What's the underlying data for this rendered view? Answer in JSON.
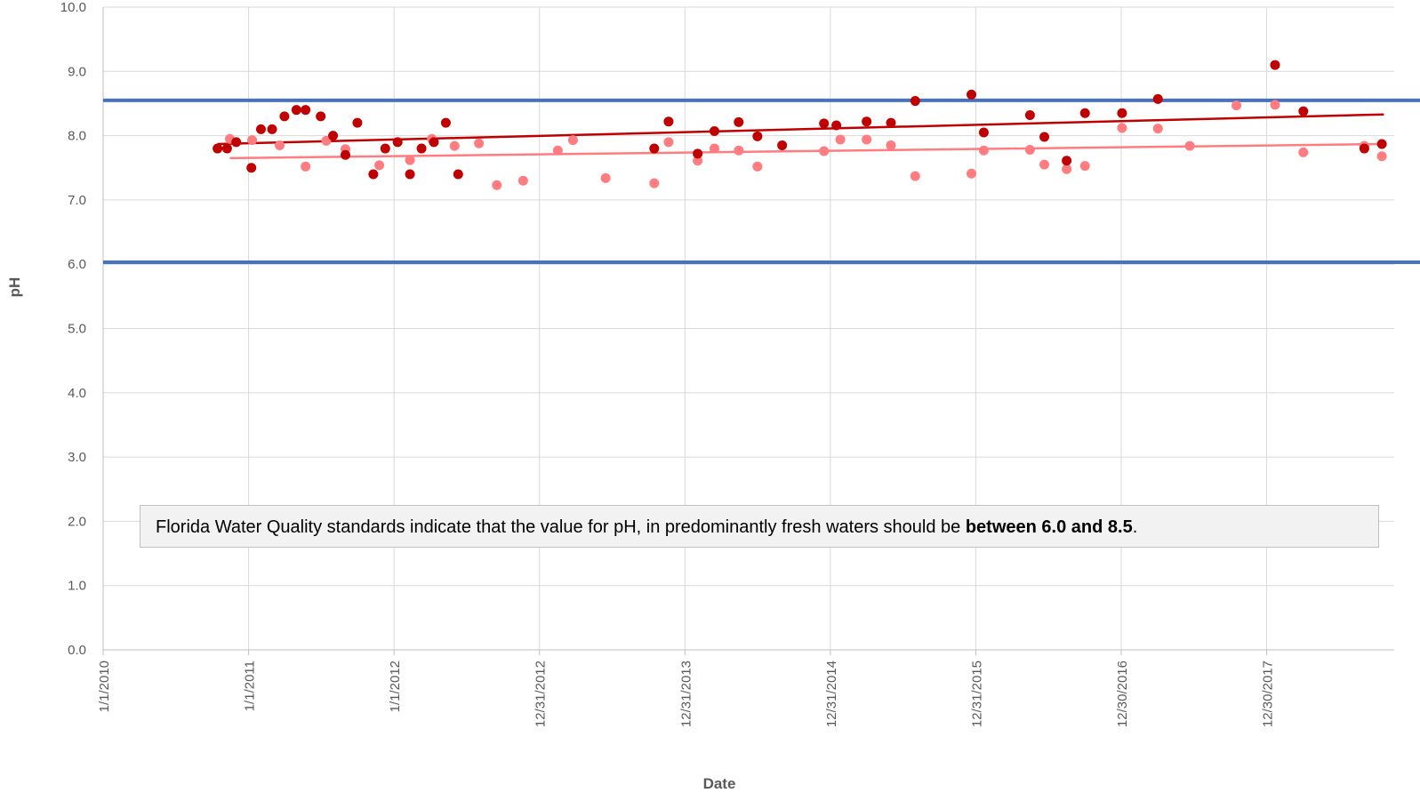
{
  "chart_data": {
    "type": "scatter",
    "xlabel": "Date",
    "ylabel": "pH",
    "ylim": [
      0,
      10
    ],
    "xlim": [
      "2010-01-01",
      "2018-11-15"
    ],
    "y_ticks": [
      "0.0",
      "1.0",
      "2.0",
      "3.0",
      "4.0",
      "5.0",
      "6.0",
      "7.0",
      "8.0",
      "9.0",
      "10.0"
    ],
    "x_ticks": [
      {
        "date": "2010-01-01",
        "label": "1/1/2010"
      },
      {
        "date": "2011-01-01",
        "label": "1/1/2011"
      },
      {
        "date": "2012-01-01",
        "label": "1/1/2012"
      },
      {
        "date": "2012-12-31",
        "label": "12/31/2012"
      },
      {
        "date": "2013-12-31",
        "label": "12/31/2013"
      },
      {
        "date": "2014-12-31",
        "label": "12/31/2014"
      },
      {
        "date": "2015-12-31",
        "label": "12/31/2015"
      },
      {
        "date": "2016-12-30",
        "label": "12/30/2016"
      },
      {
        "date": "2017-12-30",
        "label": "12/30/2017"
      }
    ],
    "grid": true,
    "colors": {
      "series_dark": "#c00000",
      "series_light": "#ff7c80",
      "limit_lines": "#4472c4",
      "grid": "#d9d9d9",
      "axis": "#bfbfbf"
    },
    "reference_lines": [
      {
        "y": 8.55,
        "color": "#4472c4"
      },
      {
        "y": 6.03,
        "color": "#4472c4"
      }
    ],
    "series": [
      {
        "color": "#c00000",
        "trendline": {
          "x": [
            "2010-10-15",
            "2018-10-20"
          ],
          "y": [
            7.87,
            8.33
          ]
        },
        "points": [
          {
            "x": "2010-10-15",
            "y": 7.8
          },
          {
            "x": "2010-11-08",
            "y": 7.8
          },
          {
            "x": "2010-12-01",
            "y": 7.9
          },
          {
            "x": "2011-01-08",
            "y": 7.5
          },
          {
            "x": "2011-02-01",
            "y": 8.1
          },
          {
            "x": "2011-03-01",
            "y": 8.1
          },
          {
            "x": "2011-04-01",
            "y": 8.3
          },
          {
            "x": "2011-05-01",
            "y": 8.4
          },
          {
            "x": "2011-05-24",
            "y": 8.4
          },
          {
            "x": "2011-07-01",
            "y": 8.3
          },
          {
            "x": "2011-08-01",
            "y": 8.0
          },
          {
            "x": "2011-09-01",
            "y": 7.7
          },
          {
            "x": "2011-10-01",
            "y": 8.2
          },
          {
            "x": "2011-11-10",
            "y": 7.4
          },
          {
            "x": "2011-12-10",
            "y": 7.8
          },
          {
            "x": "2012-01-10",
            "y": 7.9
          },
          {
            "x": "2012-02-10",
            "y": 7.4
          },
          {
            "x": "2012-03-10",
            "y": 7.8
          },
          {
            "x": "2012-04-10",
            "y": 7.9
          },
          {
            "x": "2012-05-10",
            "y": 8.2
          },
          {
            "x": "2012-06-10",
            "y": 7.4
          },
          {
            "x": "2013-10-15",
            "y": 7.8
          },
          {
            "x": "2013-11-20",
            "y": 8.22
          },
          {
            "x": "2014-02-01",
            "y": 7.72
          },
          {
            "x": "2014-03-15",
            "y": 8.07
          },
          {
            "x": "2014-05-15",
            "y": 8.21
          },
          {
            "x": "2014-07-01",
            "y": 7.99
          },
          {
            "x": "2014-09-01",
            "y": 7.85
          },
          {
            "x": "2014-12-15",
            "y": 8.19
          },
          {
            "x": "2015-01-15",
            "y": 8.16
          },
          {
            "x": "2015-04-01",
            "y": 8.22
          },
          {
            "x": "2015-06-01",
            "y": 8.2
          },
          {
            "x": "2015-08-01",
            "y": 8.54
          },
          {
            "x": "2015-12-20",
            "y": 8.64
          },
          {
            "x": "2016-01-20",
            "y": 8.05
          },
          {
            "x": "2016-05-15",
            "y": 8.32
          },
          {
            "x": "2016-06-20",
            "y": 7.98
          },
          {
            "x": "2016-08-15",
            "y": 7.61
          },
          {
            "x": "2016-09-30",
            "y": 8.35
          },
          {
            "x": "2017-01-01",
            "y": 8.35
          },
          {
            "x": "2017-04-01",
            "y": 8.57
          },
          {
            "x": "2018-01-20",
            "y": 9.1
          },
          {
            "x": "2018-04-01",
            "y": 8.38
          },
          {
            "x": "2018-09-01",
            "y": 7.8
          },
          {
            "x": "2018-10-15",
            "y": 7.87
          }
        ]
      },
      {
        "color": "#ff7c80",
        "trendline": {
          "x": [
            "2010-11-15",
            "2018-10-20"
          ],
          "y": [
            7.65,
            7.87
          ]
        },
        "points": [
          {
            "x": "2010-11-15",
            "y": 7.95
          },
          {
            "x": "2011-01-10",
            "y": 7.93
          },
          {
            "x": "2011-03-20",
            "y": 7.85
          },
          {
            "x": "2011-05-24",
            "y": 7.52
          },
          {
            "x": "2011-07-15",
            "y": 7.92
          },
          {
            "x": "2011-09-01",
            "y": 7.79
          },
          {
            "x": "2011-11-25",
            "y": 7.54
          },
          {
            "x": "2012-02-10",
            "y": 7.62
          },
          {
            "x": "2012-04-05",
            "y": 7.95
          },
          {
            "x": "2012-06-01",
            "y": 7.84
          },
          {
            "x": "2012-08-01",
            "y": 7.88
          },
          {
            "x": "2012-09-15",
            "y": 7.23
          },
          {
            "x": "2012-11-20",
            "y": 7.3
          },
          {
            "x": "2013-02-15",
            "y": 7.77
          },
          {
            "x": "2013-03-25",
            "y": 7.93
          },
          {
            "x": "2013-06-15",
            "y": 7.34
          },
          {
            "x": "2013-10-15",
            "y": 7.26
          },
          {
            "x": "2013-11-20",
            "y": 7.9
          },
          {
            "x": "2014-02-01",
            "y": 7.61
          },
          {
            "x": "2014-03-15",
            "y": 7.8
          },
          {
            "x": "2014-05-15",
            "y": 7.77
          },
          {
            "x": "2014-07-01",
            "y": 7.52
          },
          {
            "x": "2014-12-15",
            "y": 7.76
          },
          {
            "x": "2015-01-25",
            "y": 7.94
          },
          {
            "x": "2015-04-01",
            "y": 7.94
          },
          {
            "x": "2015-06-01",
            "y": 7.85
          },
          {
            "x": "2015-08-01",
            "y": 7.37
          },
          {
            "x": "2015-12-20",
            "y": 7.41
          },
          {
            "x": "2016-01-20",
            "y": 7.77
          },
          {
            "x": "2016-05-15",
            "y": 7.78
          },
          {
            "x": "2016-06-20",
            "y": 7.55
          },
          {
            "x": "2016-08-15",
            "y": 7.48
          },
          {
            "x": "2016-09-30",
            "y": 7.53
          },
          {
            "x": "2017-01-01",
            "y": 8.12
          },
          {
            "x": "2017-04-01",
            "y": 8.11
          },
          {
            "x": "2017-06-20",
            "y": 7.84
          },
          {
            "x": "2017-10-15",
            "y": 8.47
          },
          {
            "x": "2018-01-20",
            "y": 8.48
          },
          {
            "x": "2018-04-01",
            "y": 7.74
          },
          {
            "x": "2018-09-01",
            "y": 7.84
          },
          {
            "x": "2018-10-15",
            "y": 7.68
          }
        ]
      }
    ]
  },
  "annotation": {
    "text_before": "Florida Water Quality standards indicate that the value for pH, in predominantly fresh waters should be ",
    "text_bold": "between 6.0 and 8.5",
    "text_after": "."
  }
}
